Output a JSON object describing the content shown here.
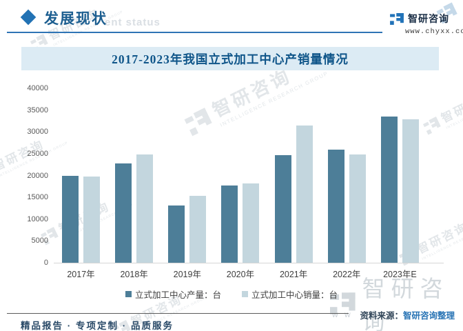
{
  "header": {
    "section_title": "发展现状",
    "section_watermark": "ent status",
    "brand_name": "智研咨询",
    "brand_url": "www.chyxx.com"
  },
  "chart_data": {
    "type": "bar",
    "title": "2017-2023年我国立式加工中心产销量情况",
    "categories": [
      "2017年",
      "2018年",
      "2019年",
      "2020年",
      "2021年",
      "2022年",
      "2023年E"
    ],
    "series": [
      {
        "name": "立式加工中心产量：台",
        "color": "#4d7e98",
        "values": [
          20000,
          22700,
          13100,
          17700,
          24600,
          26000,
          33500
        ]
      },
      {
        "name": "立式加工中心销量：台",
        "color": "#c3d6de",
        "values": [
          19800,
          24900,
          15300,
          18200,
          31500,
          24900,
          32900
        ]
      }
    ],
    "ylabel": "",
    "xlabel": "",
    "ylim": [
      0,
      40000
    ],
    "ytick_labels": [
      "0",
      "5000",
      "10000",
      "15000",
      "20000",
      "25000",
      "30000",
      "35000",
      "40000"
    ],
    "grid": false,
    "legend_position": "bottom"
  },
  "footer": {
    "source_label": "资料来源：",
    "source_value": "智研咨询整理",
    "tagline": "精品报告 · 专项定制 · 品质服务"
  },
  "watermark": {
    "brand": "智研咨询",
    "subtext": "INTELLIGENCE RESEARCH GROUP",
    "fragment": "w w"
  },
  "colors": {
    "accent": "#2272b4",
    "band_bg": "#dcebf4",
    "title_text": "#0f5589",
    "bar_production": "#4d7e98",
    "bar_sales": "#c3d6de"
  }
}
